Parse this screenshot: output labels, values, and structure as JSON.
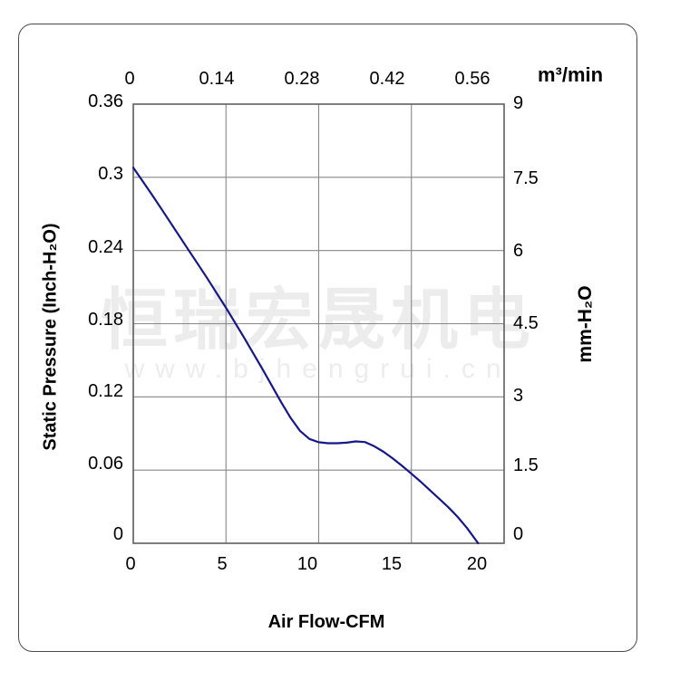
{
  "watermark": {
    "line1": "恒瑞宏晟机电",
    "line2": "www.bjhengrui.cn"
  },
  "colors": {
    "background": "#ffffff",
    "frame_border": "#4a4a4a",
    "plot_border": "#5f5f5f",
    "grid": "#878787",
    "curve": "#17178c",
    "watermark": "#ececec",
    "text": "#000000"
  },
  "chart_data": {
    "type": "line",
    "title": "",
    "grid": true,
    "legend": false,
    "axes": {
      "bottom": {
        "label": "Air Flow-CFM",
        "ticks": [
          "0",
          "5",
          "10",
          "15",
          "20"
        ],
        "range": [
          0,
          20
        ]
      },
      "top": {
        "label": "m³/min",
        "ticks": [
          "0",
          "0.14",
          "0.28",
          "0.42",
          "0.56"
        ],
        "range": [
          0,
          0.56
        ]
      },
      "left": {
        "label": "Static Pressure (Inch-H₂O)",
        "ticks": [
          "0.36",
          "0.3",
          "0.24",
          "0.18",
          "0.12",
          "0.06",
          "0"
        ],
        "range": [
          0,
          0.36
        ]
      },
      "right": {
        "label": "mm-H₂O",
        "ticks": [
          "9",
          "7.5",
          "6",
          "4.5",
          "3",
          "1.5",
          "0"
        ],
        "range": [
          0,
          9
        ]
      }
    },
    "series": [
      {
        "name": "static-pressure-vs-airflow",
        "color": "#17178c",
        "x_unit": "CFM",
        "y_unit": "Inch-H2O",
        "points": [
          [
            0,
            0.308
          ],
          [
            0.5,
            0.297
          ],
          [
            1,
            0.286
          ],
          [
            1.5,
            0.2745
          ],
          [
            2,
            0.263
          ],
          [
            2.5,
            0.2515
          ],
          [
            3,
            0.24
          ],
          [
            3.5,
            0.2285
          ],
          [
            4,
            0.217
          ],
          [
            4.5,
            0.205
          ],
          [
            5,
            0.193
          ],
          [
            5.5,
            0.1805
          ],
          [
            6,
            0.168
          ],
          [
            6.5,
            0.155
          ],
          [
            7,
            0.142
          ],
          [
            7.5,
            0.1285
          ],
          [
            8,
            0.115
          ],
          [
            8.5,
            0.1025
          ],
          [
            9,
            0.092
          ],
          [
            9.5,
            0.0855
          ],
          [
            10,
            0.0828
          ],
          [
            10.5,
            0.082
          ],
          [
            11,
            0.082
          ],
          [
            11.5,
            0.0825
          ],
          [
            12,
            0.0835
          ],
          [
            12.5,
            0.083
          ],
          [
            13,
            0.0795
          ],
          [
            13.5,
            0.075
          ],
          [
            14,
            0.0695
          ],
          [
            14.5,
            0.0635
          ],
          [
            15,
            0.057
          ],
          [
            15.5,
            0.0505
          ],
          [
            16,
            0.0435
          ],
          [
            16.5,
            0.0365
          ],
          [
            17,
            0.0295
          ],
          [
            17.5,
            0.0215
          ],
          [
            18,
            0.0125
          ],
          [
            18.6,
            0
          ]
        ]
      }
    ]
  }
}
